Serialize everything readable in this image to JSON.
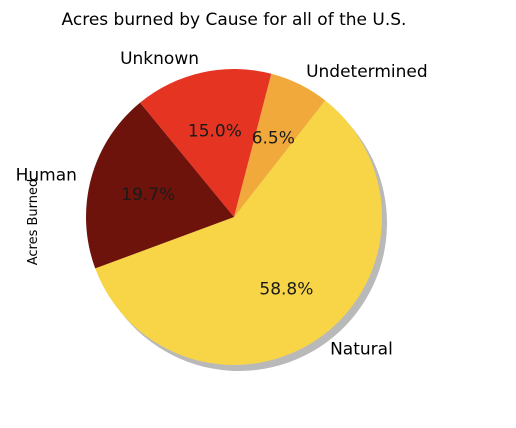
{
  "chart_data": {
    "type": "pie",
    "title": "Acres burned by Cause for all of the U.S.",
    "ylabel": "Acres Burned",
    "categories": [
      "Natural",
      "Human",
      "Unknown",
      "Undetermined"
    ],
    "values": [
      58.8,
      19.7,
      15.0,
      6.5
    ],
    "percent_labels": [
      "58.8%",
      "19.7%",
      "15.0%",
      "6.5%"
    ],
    "colors": [
      "#f8d547",
      "#6e130c",
      "#e63423",
      "#f2a93b"
    ],
    "shadow": true,
    "legend": "none"
  }
}
